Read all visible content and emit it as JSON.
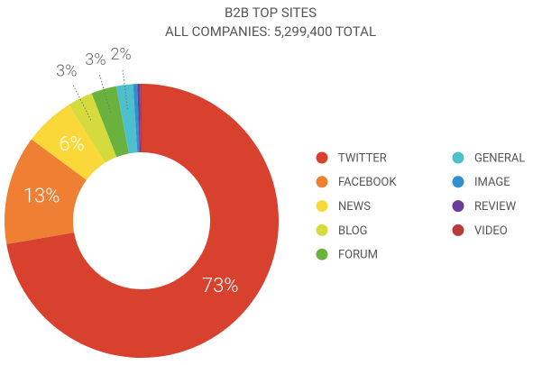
{
  "chart_data": {
    "type": "pie",
    "donut": true,
    "title": "B2B TOP SITES",
    "subtitle": "ALL COMPANIES: 5,299,400 TOTAL",
    "categories": [
      "TWITTER",
      "FACEBOOK",
      "NEWS",
      "BLOG",
      "FORUM",
      "GENERAL",
      "IMAGE",
      "REVIEW",
      "VIDEO"
    ],
    "values": [
      73,
      13,
      6,
      3,
      3,
      2,
      0.5,
      0.3,
      0.2
    ],
    "value_labels": [
      "73%",
      "13%",
      "6%",
      "3%",
      "3%",
      "2%",
      null,
      null,
      null
    ],
    "colors": [
      "#d9412f",
      "#ef7f33",
      "#fbd83a",
      "#d5db3c",
      "#6ab23e",
      "#4dbfcd",
      "#2f8fcf",
      "#6a3d9a",
      "#b83a3a"
    ],
    "legend": "right"
  }
}
